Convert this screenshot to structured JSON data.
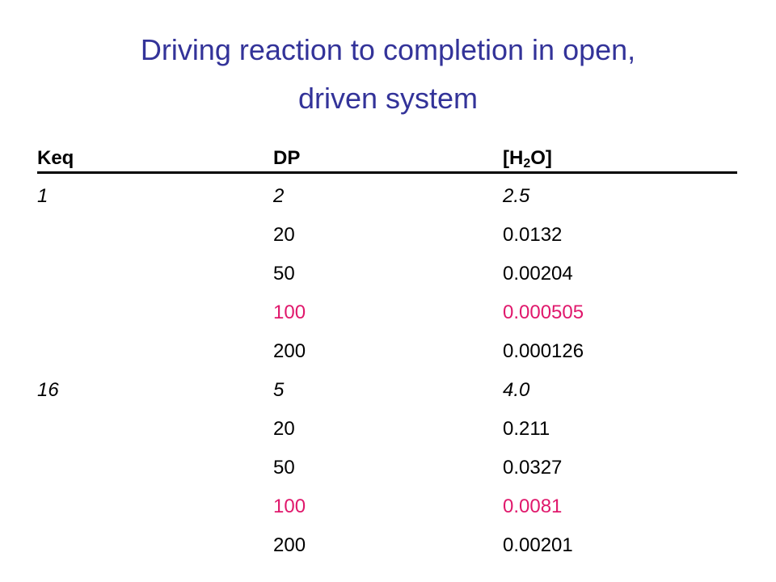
{
  "title": [
    "Driving reaction to completion in open,",
    "driven system"
  ],
  "colors": {
    "title": "#333399",
    "text": "#000000",
    "highlight": "#e0186c"
  },
  "table": {
    "header": {
      "keq": "Keq",
      "dp": "DP",
      "h2o": [
        "[H",
        "2",
        "O]"
      ]
    },
    "rows": [
      {
        "cells": [
          "1",
          "2",
          "2.5"
        ],
        "italic": true,
        "highlight": false
      },
      {
        "cells": [
          null,
          "20",
          "0.0132"
        ],
        "italic": false,
        "highlight": false
      },
      {
        "cells": [
          null,
          "50",
          "0.00204"
        ],
        "italic": false,
        "highlight": false
      },
      {
        "cells": [
          null,
          "100",
          "0.000505"
        ],
        "italic": false,
        "highlight": true
      },
      {
        "cells": [
          null,
          "200",
          "0.000126"
        ],
        "italic": false,
        "highlight": false
      },
      {
        "cells": [
          "16",
          "5",
          "4.0"
        ],
        "italic": true,
        "highlight": false
      },
      {
        "cells": [
          null,
          "20",
          "0.211"
        ],
        "italic": false,
        "highlight": false
      },
      {
        "cells": [
          null,
          "50",
          "0.0327"
        ],
        "italic": false,
        "highlight": false
      },
      {
        "cells": [
          null,
          "100",
          "0.0081"
        ],
        "italic": false,
        "highlight": true
      },
      {
        "cells": [
          null,
          "200",
          "0.00201"
        ],
        "italic": false,
        "highlight": false
      }
    ]
  }
}
